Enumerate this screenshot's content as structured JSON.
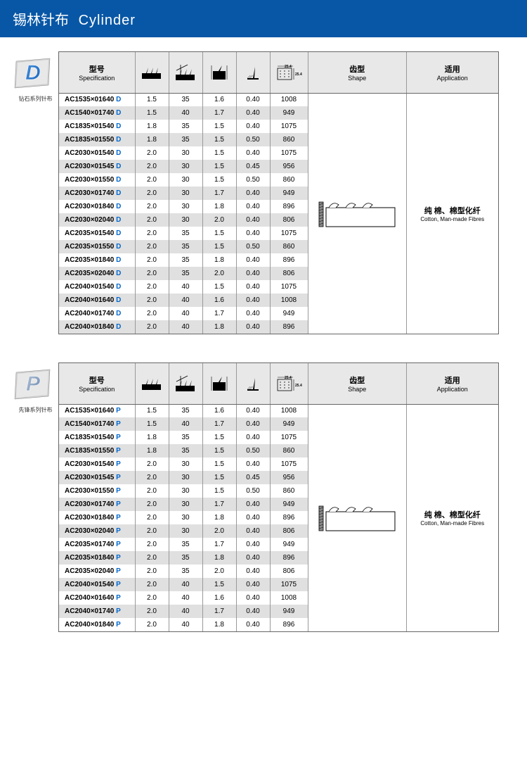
{
  "header": {
    "cn": "锡林针布",
    "en": "Cylinder"
  },
  "labels": {
    "spec_cn": "型号",
    "spec_en": "Specification",
    "shape_cn": "齿型",
    "shape_en": "Shape",
    "app_cn": "适用",
    "app_en": "Application"
  },
  "tables": [
    {
      "logo_letter": "D",
      "logo_color1": "#4a90d9",
      "logo_color2": "#1565c0",
      "logo_sub": "钻石系列针布",
      "suffix": "D",
      "suffix_color": "#0066cc",
      "app_cn": "纯 棉、棉型化纤",
      "app_en": "Cotton, Man-made Fibres",
      "rows": [
        {
          "spec": "AC1535×01640",
          "v": [
            "1.5",
            "35",
            "1.6",
            "0.40",
            "1008"
          ]
        },
        {
          "spec": "AC1540×01740",
          "v": [
            "1.5",
            "40",
            "1.7",
            "0.40",
            "949"
          ]
        },
        {
          "spec": "AC1835×01540",
          "v": [
            "1.8",
            "35",
            "1.5",
            "0.40",
            "1075"
          ]
        },
        {
          "spec": "AC1835×01550",
          "v": [
            "1.8",
            "35",
            "1.5",
            "0.50",
            "860"
          ]
        },
        {
          "spec": "AC2030×01540",
          "v": [
            "2.0",
            "30",
            "1.5",
            "0.40",
            "1075"
          ]
        },
        {
          "spec": "AC2030×01545",
          "v": [
            "2.0",
            "30",
            "1.5",
            "0.45",
            "956"
          ]
        },
        {
          "spec": "AC2030×01550",
          "v": [
            "2.0",
            "30",
            "1.5",
            "0.50",
            "860"
          ]
        },
        {
          "spec": "AC2030×01740",
          "v": [
            "2.0",
            "30",
            "1.7",
            "0.40",
            "949"
          ]
        },
        {
          "spec": "AC2030×01840",
          "v": [
            "2.0",
            "30",
            "1.8",
            "0.40",
            "896"
          ]
        },
        {
          "spec": "AC2030×02040",
          "v": [
            "2.0",
            "30",
            "2.0",
            "0.40",
            "806"
          ]
        },
        {
          "spec": "AC2035×01540",
          "v": [
            "2.0",
            "35",
            "1.5",
            "0.40",
            "1075"
          ]
        },
        {
          "spec": "AC2035×01550",
          "v": [
            "2.0",
            "35",
            "1.5",
            "0.50",
            "860"
          ]
        },
        {
          "spec": "AC2035×01840",
          "v": [
            "2.0",
            "35",
            "1.8",
            "0.40",
            "896"
          ]
        },
        {
          "spec": "AC2035×02040",
          "v": [
            "2.0",
            "35",
            "2.0",
            "0.40",
            "806"
          ]
        },
        {
          "spec": "AC2040×01540",
          "v": [
            "2.0",
            "40",
            "1.5",
            "0.40",
            "1075"
          ]
        },
        {
          "spec": "AC2040×01640",
          "v": [
            "2.0",
            "40",
            "1.6",
            "0.40",
            "1008"
          ]
        },
        {
          "spec": "AC2040×01740",
          "v": [
            "2.0",
            "40",
            "1.7",
            "0.40",
            "949"
          ]
        },
        {
          "spec": "AC2040×01840",
          "v": [
            "2.0",
            "40",
            "1.8",
            "0.40",
            "896"
          ]
        }
      ]
    },
    {
      "logo_letter": "P",
      "logo_color1": "#b8c5d6",
      "logo_color2": "#6585b0",
      "logo_sub": "先锋系列针布",
      "suffix": "P",
      "suffix_color": "#0066cc",
      "app_cn": "纯 棉、棉型化纤",
      "app_en": "Cotton, Man-made Fibres",
      "rows": [
        {
          "spec": "AC1535×01640",
          "v": [
            "1.5",
            "35",
            "1.6",
            "0.40",
            "1008"
          ]
        },
        {
          "spec": "AC1540×01740",
          "v": [
            "1.5",
            "40",
            "1.7",
            "0.40",
            "949"
          ]
        },
        {
          "spec": "AC1835×01540",
          "v": [
            "1.8",
            "35",
            "1.5",
            "0.40",
            "1075"
          ]
        },
        {
          "spec": "AC1835×01550",
          "v": [
            "1.8",
            "35",
            "1.5",
            "0.50",
            "860"
          ]
        },
        {
          "spec": "AC2030×01540",
          "v": [
            "2.0",
            "30",
            "1.5",
            "0.40",
            "1075"
          ]
        },
        {
          "spec": "AC2030×01545",
          "v": [
            "2.0",
            "30",
            "1.5",
            "0.45",
            "956"
          ]
        },
        {
          "spec": "AC2030×01550",
          "v": [
            "2.0",
            "30",
            "1.5",
            "0.50",
            "860"
          ]
        },
        {
          "spec": "AC2030×01740",
          "v": [
            "2.0",
            "30",
            "1.7",
            "0.40",
            "949"
          ]
        },
        {
          "spec": "AC2030×01840",
          "v": [
            "2.0",
            "30",
            "1.8",
            "0.40",
            "896"
          ]
        },
        {
          "spec": "AC2030×02040",
          "v": [
            "2.0",
            "30",
            "2.0",
            "0.40",
            "806"
          ]
        },
        {
          "spec": "AC2035×01740",
          "v": [
            "2.0",
            "35",
            "1.7",
            "0.40",
            "949"
          ]
        },
        {
          "spec": "AC2035×01840",
          "v": [
            "2.0",
            "35",
            "1.8",
            "0.40",
            "896"
          ]
        },
        {
          "spec": "AC2035×02040",
          "v": [
            "2.0",
            "35",
            "2.0",
            "0.40",
            "806"
          ]
        },
        {
          "spec": "AC2040×01540",
          "v": [
            "2.0",
            "40",
            "1.5",
            "0.40",
            "1075"
          ]
        },
        {
          "spec": "AC2040×01640",
          "v": [
            "2.0",
            "40",
            "1.6",
            "0.40",
            "1008"
          ]
        },
        {
          "spec": "AC2040×01740",
          "v": [
            "2.0",
            "40",
            "1.7",
            "0.40",
            "949"
          ]
        },
        {
          "spec": "AC2040×01840",
          "v": [
            "2.0",
            "40",
            "1.8",
            "0.40",
            "896"
          ]
        }
      ]
    }
  ]
}
